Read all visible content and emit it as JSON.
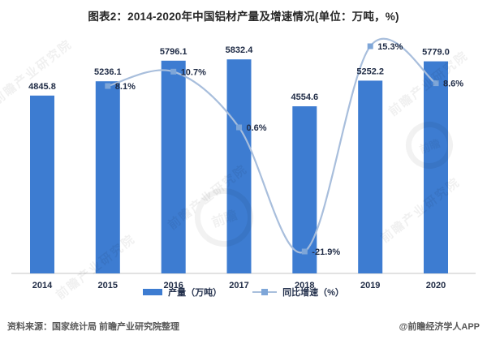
{
  "title": "图表2：2014-2020年中国铝材产量及增速情况(单位：万吨，%)",
  "chart_data": {
    "type": "bar+line combo",
    "categories": [
      "2014",
      "2015",
      "2016",
      "2017",
      "2018",
      "2019",
      "2020"
    ],
    "series": [
      {
        "name": "产量（万吨）",
        "type": "bar",
        "values": [
          4845.8,
          5236.1,
          5796.1,
          5832.4,
          4554.6,
          5252.2,
          5779.0
        ],
        "labels": [
          "4845.8",
          "5236.1",
          "5796.1",
          "5832.4",
          "4554.6",
          "5252.2",
          "5779.0"
        ],
        "color": "#3D7CD1"
      },
      {
        "name": "同比增速（%）",
        "type": "line",
        "smooth": true,
        "values": [
          null,
          8.1,
          10.7,
          0.6,
          -21.9,
          15.3,
          8.6
        ],
        "labels": [
          "",
          "8.1%",
          "10.7%",
          "0.6%",
          "-21.9%",
          "15.3%",
          "8.6%"
        ],
        "color": "#A8BEDC",
        "marker_color": "#7EA6D8"
      }
    ],
    "ylabel": "",
    "xlabel": "",
    "grid": false,
    "legend_position": "bottom",
    "bar_axis_min": 0,
    "label_color": "#1f2b45",
    "axis_line_color": "#d9d9d9"
  },
  "footer": {
    "source": "资料来源：国家统计局 前瞻产业研究院整理",
    "credit": "@前瞻经济学人APP"
  },
  "watermark": {
    "text": "前瞻产业研究院",
    "logo_text": "前瞻"
  }
}
